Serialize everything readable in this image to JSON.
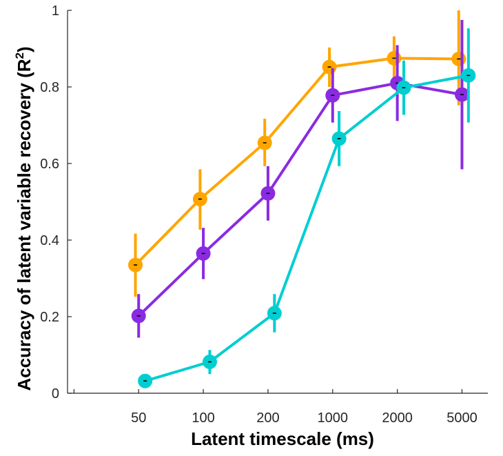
{
  "chart_data": {
    "type": "line",
    "title": "",
    "xlabel": "Latent timescale (ms)",
    "ylabel": "Accuracy of latent variable recovery (R",
    "ylabel_superscript": "2",
    "ylabel_suffix": ")",
    "categories": [
      "50",
      "100",
      "200",
      "1000",
      "2000",
      "5000"
    ],
    "xlim": [
      -0.1,
      6.4
    ],
    "ylim": [
      0,
      1
    ],
    "yticks": [
      0,
      0.2,
      0.4,
      0.6,
      0.8,
      1
    ],
    "ytick_labels": [
      "0",
      "0.2",
      "0.4",
      "0.6",
      "0.8",
      "1"
    ],
    "grid": false,
    "legend": "none",
    "series": [
      {
        "color": "#FFA500",
        "x": [
          0.95,
          1.95,
          2.95,
          3.95,
          4.95,
          5.95
        ],
        "values": [
          0.335,
          0.507,
          0.654,
          0.852,
          0.875,
          0.873
        ],
        "err_low": [
          0.252,
          0.427,
          0.593,
          0.8,
          0.815,
          0.752
        ],
        "err_high": [
          0.417,
          0.585,
          0.717,
          0.903,
          0.932,
          1.0
        ]
      },
      {
        "color": "#8A2BE2",
        "x": [
          1.0,
          2.0,
          3.0,
          4.0,
          5.0,
          6.0
        ],
        "values": [
          0.202,
          0.365,
          0.522,
          0.778,
          0.81,
          0.78
        ],
        "err_low": [
          0.145,
          0.298,
          0.451,
          0.707,
          0.711,
          0.585
        ],
        "err_high": [
          0.259,
          0.432,
          0.593,
          0.849,
          0.909,
          0.975
        ]
      },
      {
        "color": "#00CED1",
        "x": [
          1.1,
          2.1,
          3.1,
          4.1,
          5.1,
          6.1
        ],
        "values": [
          0.032,
          0.082,
          0.209,
          0.665,
          0.798,
          0.83
        ],
        "err_low": [
          0.024,
          0.05,
          0.159,
          0.593,
          0.727,
          0.707
        ],
        "err_high": [
          0.04,
          0.113,
          0.259,
          0.737,
          0.869,
          0.953
        ]
      }
    ]
  }
}
